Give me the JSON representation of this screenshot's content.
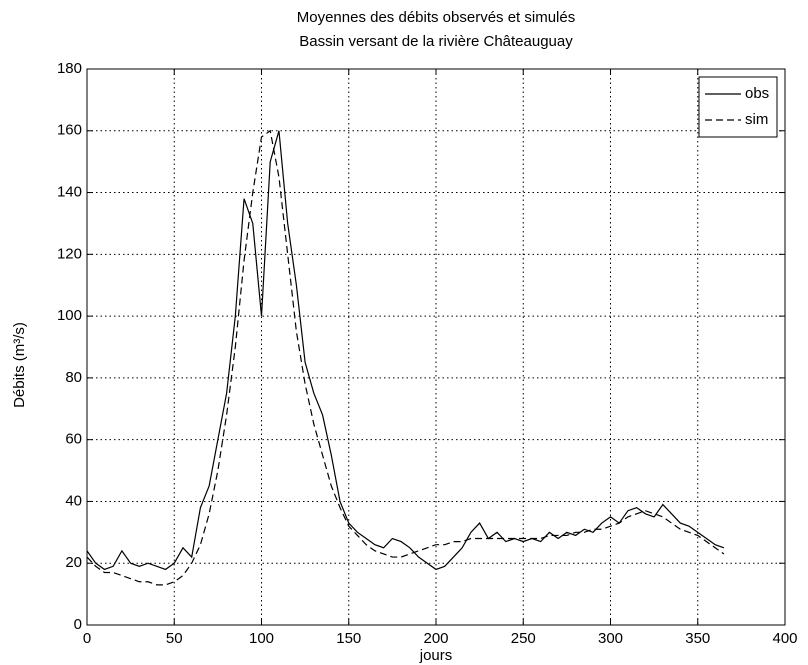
{
  "chart_data": {
    "type": "line",
    "title": "Moyennes des débits observés et simulés",
    "subtitle": "Bassin versant de la rivière Châteauguay",
    "xlabel": "jours",
    "ylabel": "Débits (m³/s)",
    "x": [
      0,
      5,
      10,
      15,
      20,
      25,
      30,
      35,
      40,
      45,
      50,
      55,
      60,
      65,
      70,
      75,
      80,
      85,
      90,
      95,
      100,
      105,
      110,
      115,
      120,
      125,
      130,
      135,
      140,
      145,
      150,
      155,
      160,
      165,
      170,
      175,
      180,
      185,
      190,
      195,
      200,
      205,
      210,
      215,
      220,
      225,
      230,
      235,
      240,
      245,
      250,
      255,
      260,
      265,
      270,
      275,
      280,
      285,
      290,
      295,
      300,
      305,
      310,
      315,
      320,
      325,
      330,
      335,
      340,
      345,
      350,
      355,
      360,
      365
    ],
    "series": [
      {
        "name": "obs",
        "color": "#000000",
        "dash": false,
        "values": [
          24,
          20,
          18,
          19,
          24,
          20,
          19,
          20,
          19,
          18,
          20,
          25,
          22,
          38,
          45,
          60,
          75,
          100,
          138,
          130,
          100,
          150,
          160,
          130,
          110,
          85,
          75,
          68,
          55,
          40,
          33,
          30,
          28,
          26,
          25,
          28,
          27,
          25,
          22,
          20,
          18,
          19,
          22,
          25,
          30,
          33,
          28,
          30,
          27,
          28,
          27,
          28,
          27,
          30,
          28,
          30,
          29,
          31,
          30,
          33,
          35,
          33,
          37,
          38,
          36,
          35,
          39,
          36,
          33,
          32,
          30,
          28,
          26,
          25
        ]
      },
      {
        "name": "sim",
        "color": "#000000",
        "dash": true,
        "values": [
          22,
          19,
          17,
          17,
          16,
          15,
          14,
          14,
          13,
          13,
          14,
          16,
          20,
          26,
          36,
          50,
          68,
          90,
          118,
          140,
          158,
          160,
          145,
          120,
          95,
          78,
          65,
          55,
          45,
          38,
          32,
          29,
          26,
          24,
          23,
          22,
          22,
          23,
          24,
          25,
          26,
          26,
          27,
          27,
          28,
          28,
          28,
          28,
          28,
          28,
          28,
          28,
          28,
          29,
          29,
          29,
          30,
          30,
          31,
          31,
          32,
          33,
          35,
          36,
          37,
          36,
          35,
          33,
          31,
          30,
          29,
          27,
          25,
          23
        ]
      }
    ],
    "xlim": [
      0,
      400
    ],
    "xticks": [
      0,
      50,
      100,
      150,
      200,
      250,
      300,
      350,
      400
    ],
    "ylim": [
      0,
      180
    ],
    "yticks": [
      0,
      20,
      40,
      60,
      80,
      100,
      120,
      140,
      160,
      180
    ],
    "grid": true,
    "legend": "northeast"
  }
}
